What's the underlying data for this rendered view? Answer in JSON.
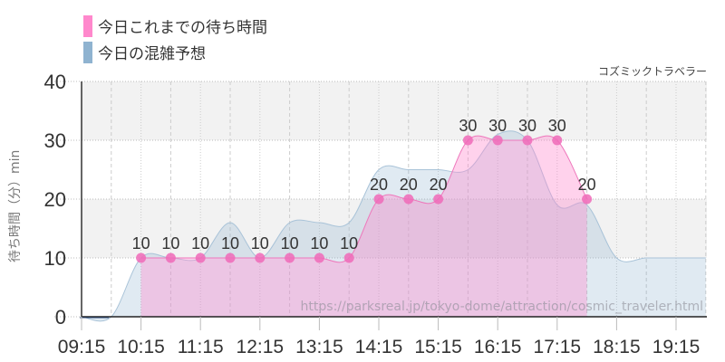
{
  "legend": {
    "items": [
      {
        "label": "今日これまでの待ち時間",
        "color": "#ff88cc"
      },
      {
        "label": "今日の混雑予想",
        "color": "#8fb3d0"
      }
    ]
  },
  "credit": "コズミックトラベラー",
  "watermark": "https://parksreal.jp/tokyo-dome/attraction/cosmic_traveler.html",
  "y_axis_label": "待ち時間（分）min",
  "chart_data": {
    "type": "area",
    "title": "",
    "xlabel": "",
    "ylabel": "待ち時間（分）min",
    "ylim": [
      0,
      40
    ],
    "y_ticks": [
      "0",
      "10",
      "20",
      "30",
      "40"
    ],
    "x_ticks": [
      "09:15",
      "10:15",
      "11:15",
      "12:15",
      "13:15",
      "14:15",
      "15:15",
      "16:15",
      "17:15",
      "18:15",
      "19:15"
    ],
    "grid": true,
    "legend_position": "top-left",
    "series": [
      {
        "name": "今日これまでの待ち時間",
        "color": "#ff88cc",
        "x": [
          "10:15",
          "10:45",
          "11:15",
          "11:45",
          "12:15",
          "12:45",
          "13:15",
          "13:45",
          "14:15",
          "14:45",
          "15:15",
          "15:45",
          "16:15",
          "16:45",
          "17:15",
          "17:45"
        ],
        "values": [
          10,
          10,
          10,
          10,
          10,
          10,
          10,
          10,
          20,
          20,
          20,
          30,
          30,
          30,
          30,
          20
        ],
        "labels": [
          "10",
          "10",
          "10",
          "10",
          "10",
          "10",
          "10",
          "10",
          "20",
          "20",
          "20",
          "30",
          "30",
          "30",
          "30",
          "20"
        ]
      },
      {
        "name": "今日の混雑予想",
        "color": "#8fb3d0",
        "x": [
          "09:15",
          "09:45",
          "10:15",
          "10:45",
          "11:15",
          "11:45",
          "12:15",
          "12:45",
          "13:15",
          "13:45",
          "14:15",
          "14:45",
          "15:15",
          "15:45",
          "16:15",
          "16:45",
          "17:15",
          "17:45",
          "18:15",
          "18:45",
          "19:15",
          "19:45"
        ],
        "values": [
          0,
          0,
          10,
          10,
          10,
          16,
          10,
          16,
          16,
          16,
          25,
          25,
          25,
          25,
          31,
          30,
          19,
          19,
          10,
          10,
          10,
          10
        ]
      }
    ]
  }
}
